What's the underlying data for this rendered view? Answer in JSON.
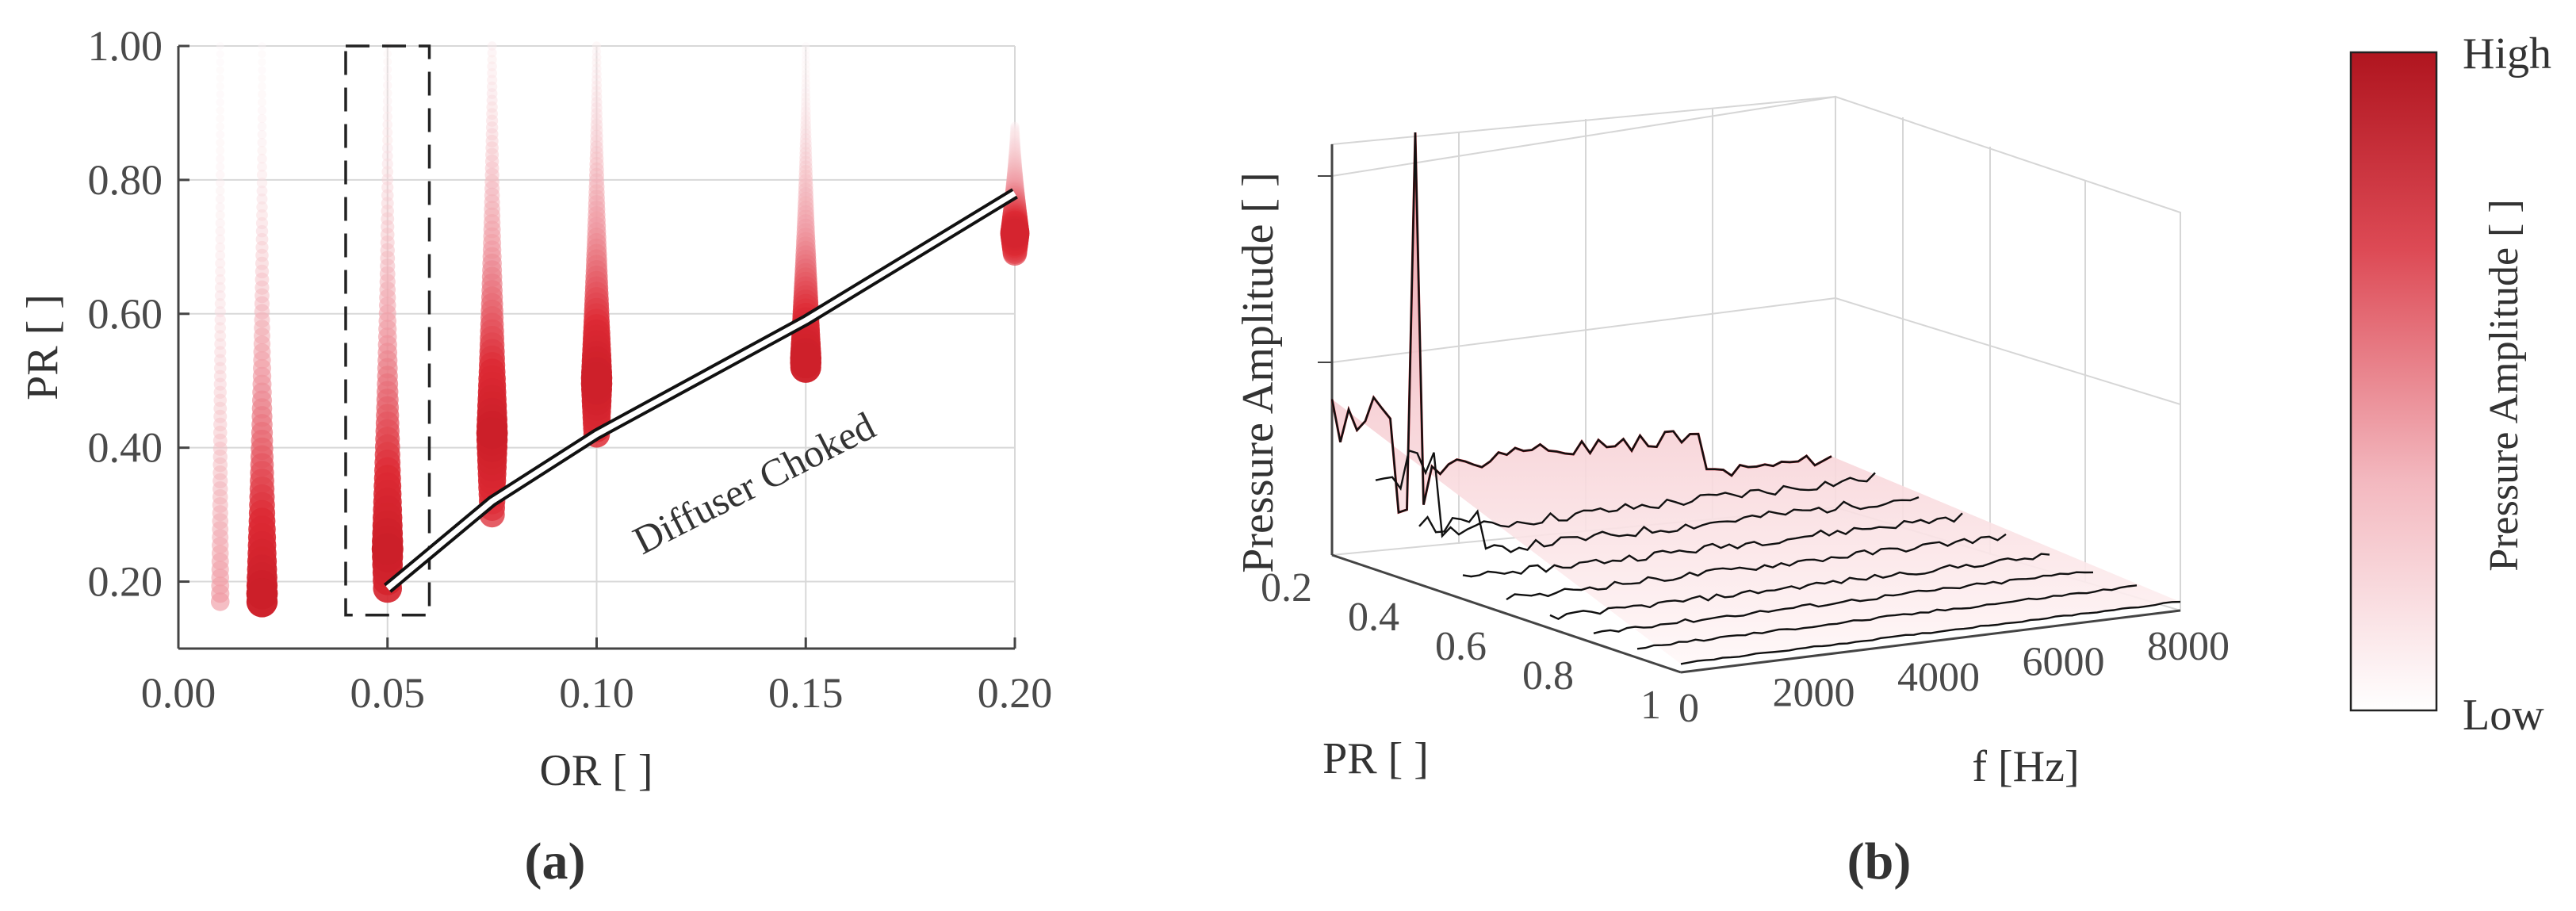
{
  "colors": {
    "low": "#fdf2f3",
    "mid": "#e88e98",
    "high": "#cc1f29",
    "dark": "#a8141d",
    "grid": "#d6d6d6",
    "axis": "#444444",
    "text": "#333333"
  },
  "panels": {
    "a": {
      "caption": "(a)"
    },
    "b": {
      "caption": "(b)"
    }
  },
  "chart_data": [
    {
      "id": "a",
      "type": "scatter",
      "title": "",
      "xlabel": "OR [ ]",
      "ylabel": "PR [ ]",
      "xlim": [
        0.0,
        0.2
      ],
      "ylim": [
        0.1,
        1.0
      ],
      "xticks": [
        0.0,
        0.05,
        0.1,
        0.15,
        0.2
      ],
      "xtick_labels": [
        "0.00",
        "0.05",
        "0.10",
        "0.15",
        "0.20"
      ],
      "yticks": [
        0.2,
        0.4,
        0.6,
        0.8,
        1.0
      ],
      "ytick_labels": [
        "0.20",
        "0.40",
        "0.60",
        "0.80",
        "1.00"
      ],
      "grid": true,
      "encoding": "marker size and red intensity = pressure amplitude",
      "series": [
        {
          "or": 0.01,
          "pr_min": 0.17,
          "pr_max": 1.0,
          "peak_pr": 0.17,
          "peak_amp": 0.75
        },
        {
          "or": 0.02,
          "pr_min": 0.17,
          "pr_max": 1.0,
          "peak_pr": 0.18,
          "peak_amp": 1.0
        },
        {
          "or": 0.05,
          "pr_min": 0.19,
          "pr_max": 1.0,
          "peak_pr": 0.25,
          "peak_amp": 1.0
        },
        {
          "or": 0.075,
          "pr_min": 0.3,
          "pr_max": 1.0,
          "peak_pr": 0.42,
          "peak_amp": 1.0
        },
        {
          "or": 0.1,
          "pr_min": 0.42,
          "pr_max": 1.0,
          "peak_pr": 0.5,
          "peak_amp": 1.0
        },
        {
          "or": 0.15,
          "pr_min": 0.52,
          "pr_max": 1.0,
          "peak_pr": 0.53,
          "peak_amp": 1.0
        },
        {
          "or": 0.2,
          "pr_min": 0.69,
          "pr_max": 0.88,
          "peak_pr": 0.72,
          "peak_amp": 0.9
        }
      ],
      "choke_line": {
        "label": "Diffuser Choked",
        "points": [
          [
            0.05,
            0.19
          ],
          [
            0.075,
            0.32
          ],
          [
            0.1,
            0.42
          ],
          [
            0.15,
            0.59
          ],
          [
            0.2,
            0.78
          ]
        ]
      },
      "highlight_box": {
        "or_range": [
          0.04,
          0.06
        ],
        "pr_range": [
          0.15,
          1.0
        ],
        "style": "dashed"
      }
    },
    {
      "id": "b",
      "type": "surface-3d",
      "title": "",
      "xlabel": "f [Hz]",
      "ylabel": "PR [ ]",
      "zlabel": "Pressure Amplitude [ ]",
      "x_ticks": [
        0,
        2000,
        4000,
        6000,
        8000
      ],
      "x_tick_labels": [
        "0",
        "2000",
        "4000",
        "6000",
        "8000"
      ],
      "y_ticks": [
        0.2,
        0.4,
        0.6,
        0.8,
        1.0
      ],
      "y_tick_labels": [
        "0.2",
        "0.4",
        "0.6",
        "0.8",
        "1"
      ],
      "grid": true,
      "peak": {
        "f": 1300,
        "pr": 0.2,
        "note": "sharp tonal peak"
      },
      "colorbar": {
        "label": "Pressure Amplitude [ ]",
        "high_label": "High",
        "low_label": "Low"
      }
    }
  ]
}
